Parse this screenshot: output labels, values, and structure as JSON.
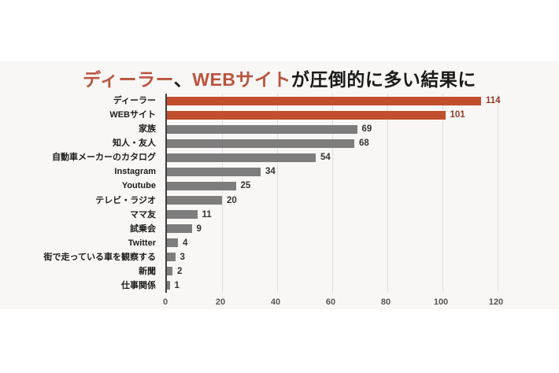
{
  "title": {
    "highlight1": "ディーラー",
    "separator": "、",
    "highlight2": "WEBサイト",
    "rest": "が圧倒的に多い結果に"
  },
  "colors": {
    "accent_bar": "#c24e2d",
    "accent_title_text": "#b9543f",
    "accent_value_text": "#963c28",
    "gray_bar": "#7d7d7d",
    "gray_value_text": "#333333",
    "category_text": "#1c1c1c",
    "tick_text": "#555555",
    "gridline": "#dedede",
    "axis_line": "#3f3f3f",
    "band_background": "#f8f7f5"
  },
  "chart_data": {
    "type": "bar",
    "orientation": "horizontal",
    "title": "ディーラー、WEBサイトが圧倒的に多い結果に",
    "categories": [
      "ディーラー",
      "WEBサイト",
      "家族",
      "知人・友人",
      "自動車メーカーのカタログ",
      "Instagram",
      "Youtube",
      "テレビ・ラジオ",
      "ママ友",
      "試乗会",
      "Twitter",
      "街で走っている車を観察する",
      "新聞",
      "仕事関係"
    ],
    "values": [
      114,
      101,
      69,
      68,
      54,
      34,
      25,
      20,
      11,
      9,
      4,
      3,
      2,
      1
    ],
    "highlight_count": 2,
    "xlabel": "",
    "ylabel": "",
    "xlim": [
      0,
      120
    ],
    "xticks": [
      0,
      20,
      40,
      60,
      80,
      100,
      120
    ],
    "grid": true,
    "legend": false,
    "value_labels": true
  }
}
